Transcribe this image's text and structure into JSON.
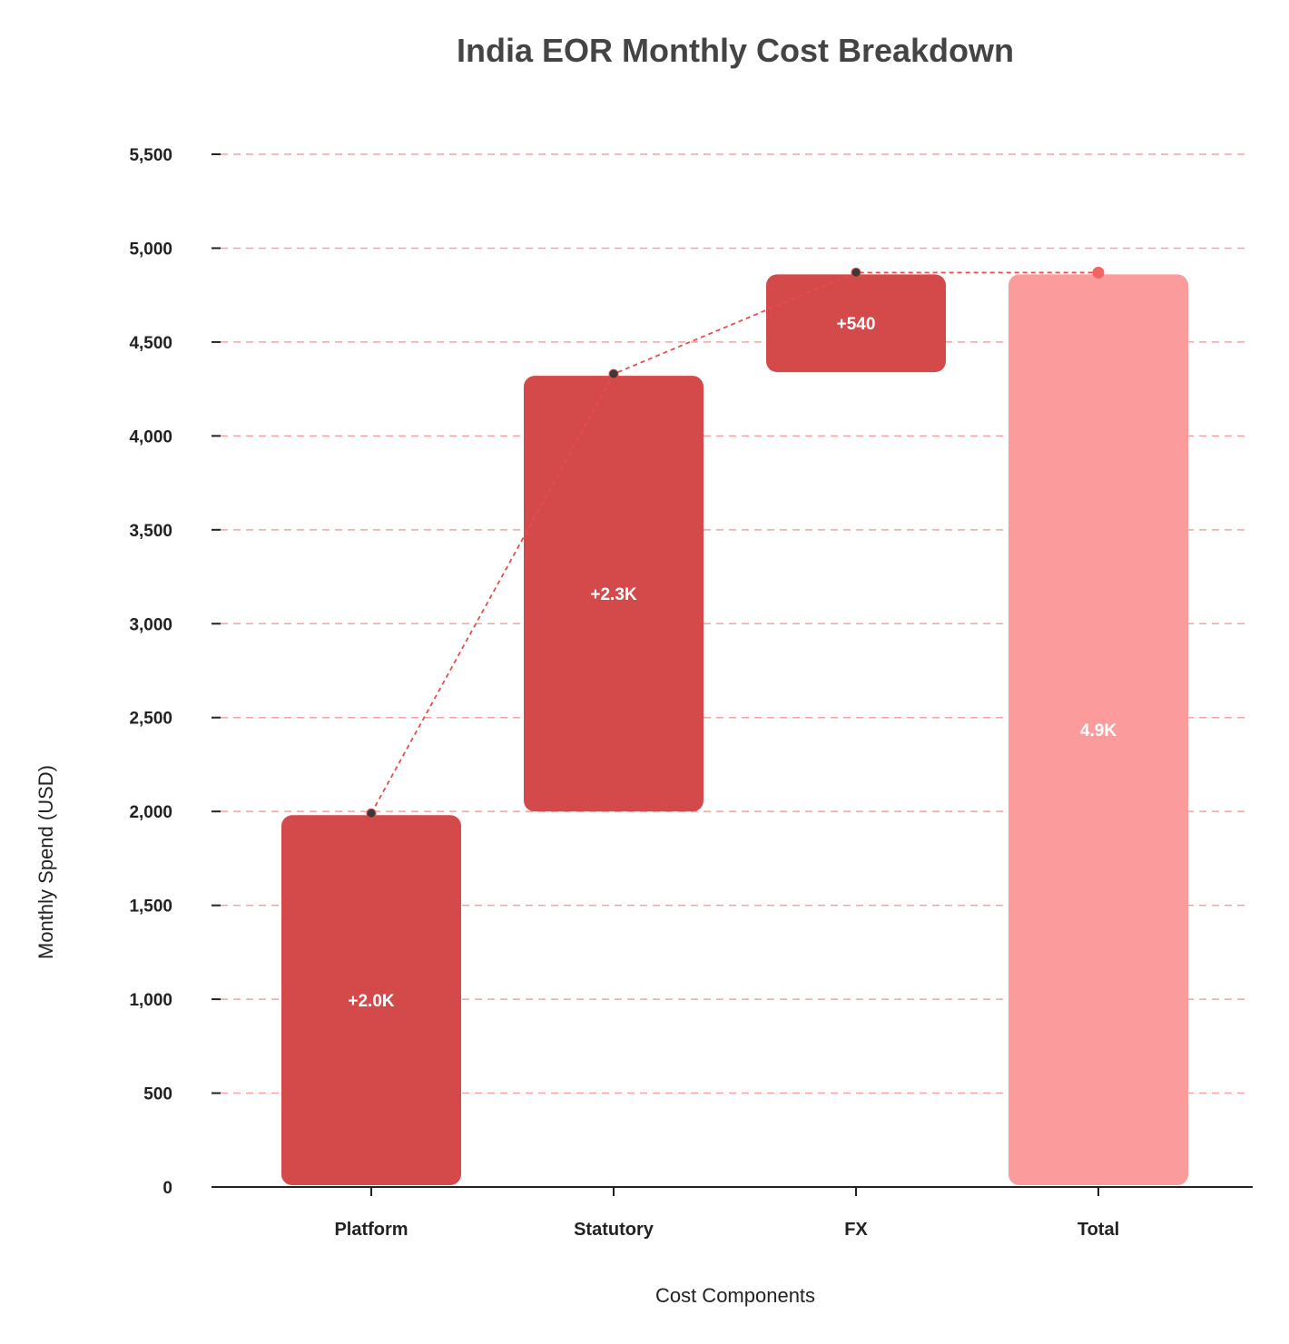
{
  "chart_data": {
    "type": "bar",
    "subtype": "waterfall",
    "title": "India EOR Monthly Cost Breakdown",
    "xlabel": "Cost Components",
    "ylabel": "Monthly Spend (USD)",
    "ylim": [
      0,
      5500
    ],
    "yticks": [
      0,
      500,
      1000,
      1500,
      2000,
      2500,
      3000,
      3500,
      4000,
      4500,
      5000,
      5500
    ],
    "ytick_labels": [
      "0",
      "500",
      "1,000",
      "1,500",
      "2,000",
      "2,500",
      "3,000",
      "3,500",
      "4,000",
      "4,500",
      "5,000",
      "5,500"
    ],
    "grid": true,
    "categories": [
      "Platform",
      "Statutory",
      "FX",
      "Total"
    ],
    "steps": [
      {
        "category": "Platform",
        "base": 0,
        "value": 1990,
        "kind": "increase",
        "label": "+2.0K"
      },
      {
        "category": "Statutory",
        "base": 1990,
        "value": 2340,
        "kind": "increase",
        "label": "+2.3K"
      },
      {
        "category": "FX",
        "base": 4330,
        "value": 540,
        "kind": "increase",
        "label": "+540"
      },
      {
        "category": "Total",
        "base": 0,
        "value": 4870,
        "kind": "total",
        "label": "4.9K"
      }
    ],
    "colors": {
      "increase": "#d44a4a",
      "total": "#fc9b9b",
      "connector": "#e84c4c",
      "marker": "#3a3a3a",
      "total_marker": "#f26565",
      "grid": "#f4a3a3"
    }
  }
}
